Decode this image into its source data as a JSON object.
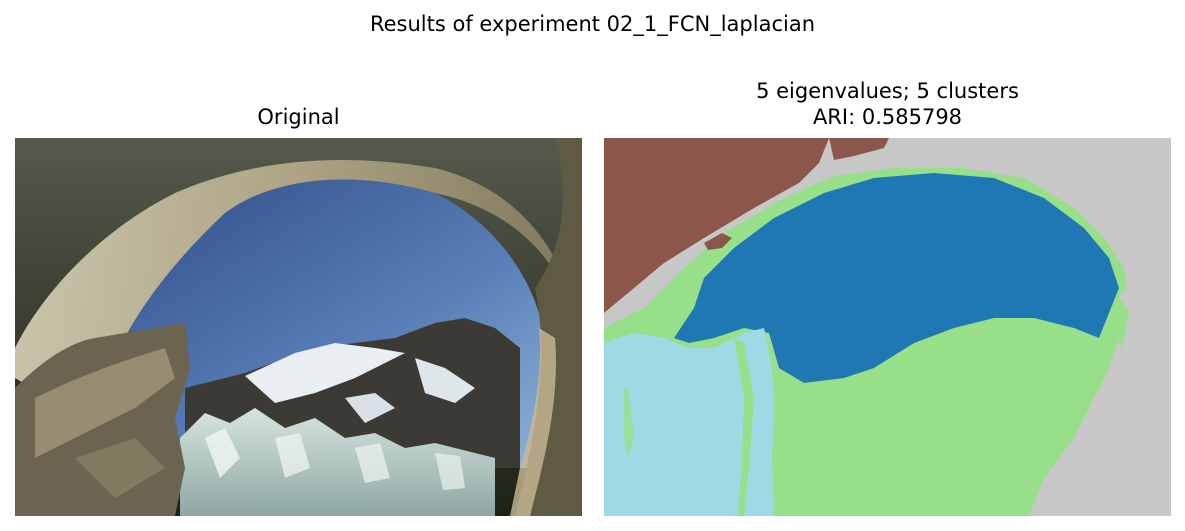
{
  "figure": {
    "suptitle": "Results of experiment 02_1_FCN_laplacian"
  },
  "left_panel": {
    "title": "Original",
    "image": "photo of ice-cave arch framing blue sky, snowy mountains and glacier seracs"
  },
  "right_panel": {
    "title_line1": "5 eigenvalues; 5 clusters",
    "title_line2": "ARI: 0.585798",
    "image": "segmentation map",
    "cluster_colors": {
      "brown": "#8c564b",
      "dark_blue": "#1f77b4",
      "light_green": "#98df8a",
      "light_cyan": "#9edae5",
      "gray": "#c7c7c7"
    }
  }
}
